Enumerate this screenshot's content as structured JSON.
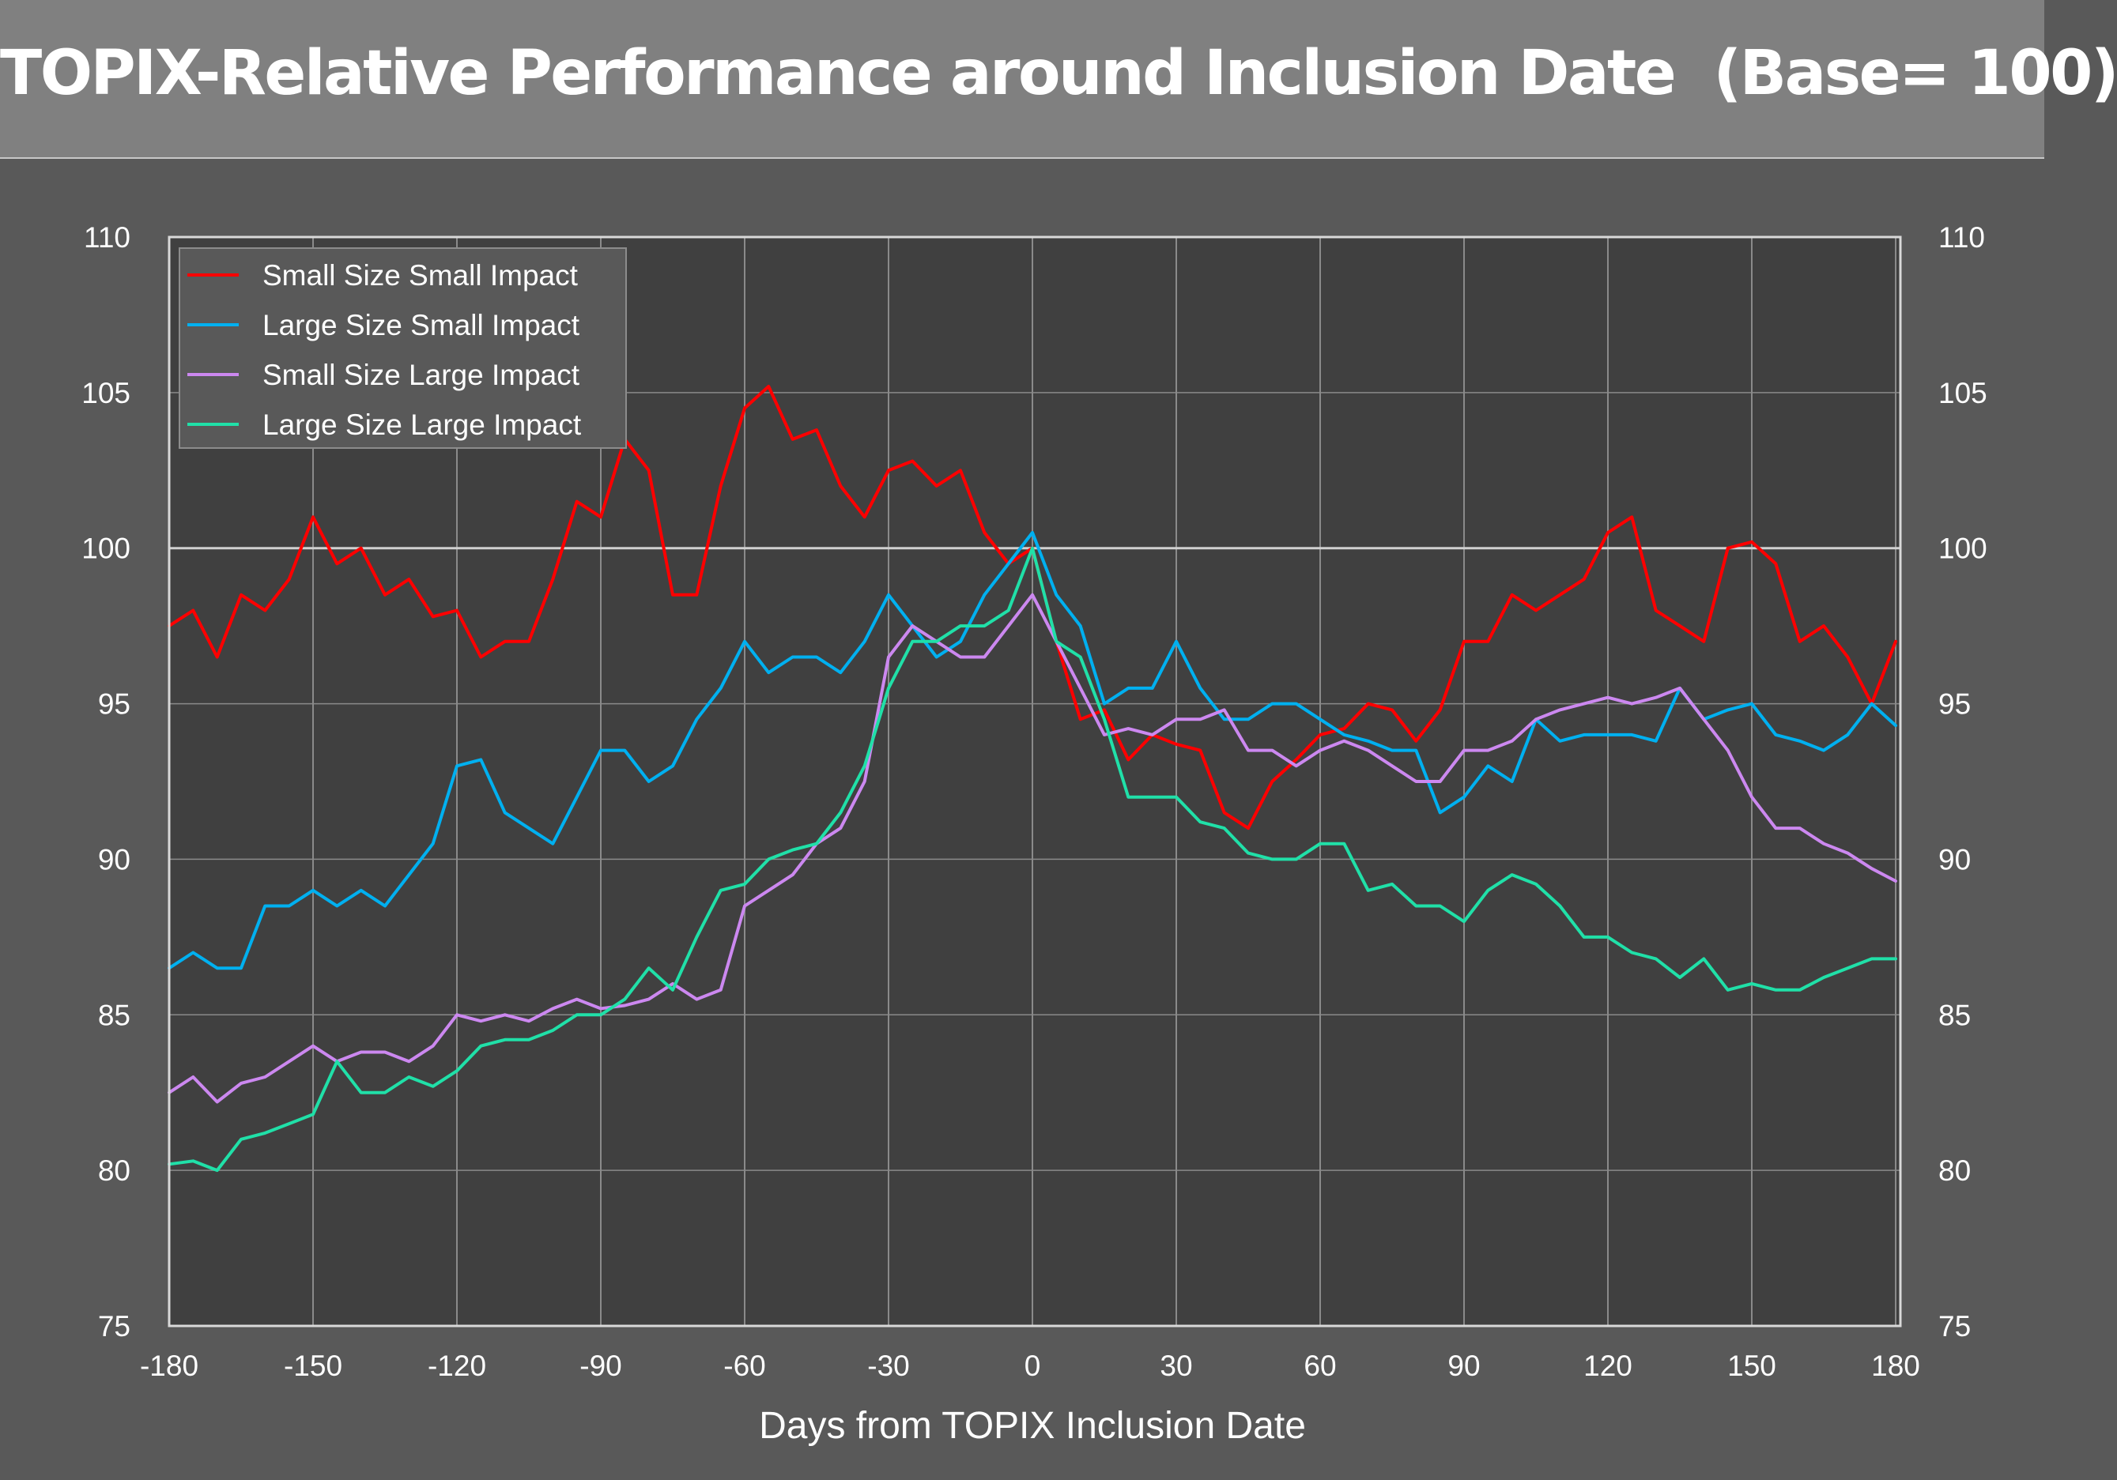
{
  "header": {
    "title": "TOPIX-Relative Performance around Inclusion Date  (Base= 100)"
  },
  "chart_data": {
    "type": "line",
    "title": "TOPIX-Relative Performance around Inclusion Date  (Base= 100)",
    "xlabel": "Days from TOPIX Inclusion Date",
    "ylabel": "",
    "xlim": [
      -180,
      180
    ],
    "ylim": [
      75,
      110
    ],
    "xticks": [
      -180,
      -150,
      -120,
      -90,
      -60,
      -30,
      0,
      30,
      60,
      90,
      120,
      150,
      180
    ],
    "xtick_labels": [
      "-180",
      "-150",
      "-120",
      "-90",
      "-60",
      "-30",
      "0",
      "30",
      "60",
      "90",
      "120",
      "150",
      "180"
    ],
    "yticks": [
      75,
      80,
      85,
      90,
      95,
      100,
      105,
      110
    ],
    "ytick_labels": [
      "75",
      "80",
      "85",
      "90",
      "95",
      "100",
      "105",
      "110"
    ],
    "secondary_y_axis": true,
    "grid": true,
    "reference_line": 100,
    "legend_position": "top-left",
    "x": [
      -180,
      -175,
      -170,
      -165,
      -160,
      -155,
      -150,
      -145,
      -140,
      -135,
      -130,
      -125,
      -120,
      -115,
      -110,
      -105,
      -100,
      -95,
      -90,
      -85,
      -80,
      -75,
      -70,
      -65,
      -60,
      -55,
      -50,
      -45,
      -40,
      -35,
      -30,
      -25,
      -20,
      -15,
      -10,
      -5,
      0,
      5,
      10,
      15,
      20,
      25,
      30,
      35,
      40,
      45,
      50,
      55,
      60,
      65,
      70,
      75,
      80,
      85,
      90,
      95,
      100,
      105,
      110,
      115,
      120,
      125,
      130,
      135,
      140,
      145,
      150,
      155,
      160,
      165,
      170,
      175,
      180
    ],
    "series": [
      {
        "name": "Small Size Small Impact",
        "color": "#ff0000",
        "values": [
          97.5,
          98.0,
          96.5,
          98.5,
          98.0,
          99.0,
          101.0,
          99.5,
          100.0,
          98.5,
          99.0,
          97.8,
          98.0,
          96.5,
          97.0,
          97.0,
          99.0,
          101.5,
          101.0,
          103.5,
          102.5,
          98.5,
          98.5,
          102.0,
          104.5,
          105.2,
          103.5,
          103.8,
          102.0,
          101.0,
          102.5,
          102.8,
          102.0,
          102.5,
          100.5,
          99.5,
          100.0,
          97.0,
          94.5,
          94.8,
          93.2,
          94.0,
          93.7,
          93.5,
          91.5,
          91.0,
          92.5,
          93.2,
          94.0,
          94.2,
          95.0,
          94.8,
          93.8,
          94.8,
          97.0,
          97.0,
          98.5,
          98.0,
          98.5,
          99.0,
          100.5,
          101.0,
          98.0,
          97.5,
          97.0,
          100.0,
          100.2,
          99.5,
          97.0,
          97.5,
          96.5,
          95.0,
          97.0
        ]
      },
      {
        "name": "Large Size Small Impact",
        "color": "#00b0f0",
        "values": [
          86.5,
          87.0,
          86.5,
          86.5,
          88.5,
          88.5,
          89.0,
          88.5,
          89.0,
          88.5,
          89.5,
          90.5,
          93.0,
          93.2,
          91.5,
          91.0,
          90.5,
          92.0,
          93.5,
          93.5,
          92.5,
          93.0,
          94.5,
          95.5,
          97.0,
          96.0,
          96.5,
          96.5,
          96.0,
          97.0,
          98.5,
          97.5,
          96.5,
          97.0,
          98.5,
          99.5,
          100.5,
          98.5,
          97.5,
          95.0,
          95.5,
          95.5,
          97.0,
          95.5,
          94.5,
          94.5,
          95.0,
          95.0,
          94.5,
          94.0,
          93.8,
          93.5,
          93.5,
          91.5,
          92.0,
          93.0,
          92.5,
          94.5,
          93.8,
          94.0,
          94.0,
          94.0,
          93.8,
          95.5,
          94.5,
          94.8,
          95.0,
          94.0,
          93.8,
          93.5,
          94.0,
          95.0,
          94.3
        ]
      },
      {
        "name": "Small Size Large Impact",
        "color": "#cc88f0",
        "values": [
          82.5,
          83.0,
          82.2,
          82.8,
          83.0,
          83.5,
          84.0,
          83.5,
          83.8,
          83.8,
          83.5,
          84.0,
          85.0,
          84.8,
          85.0,
          84.8,
          85.2,
          85.5,
          85.2,
          85.3,
          85.5,
          86.0,
          85.5,
          85.8,
          88.5,
          89.0,
          89.5,
          90.5,
          91.0,
          92.5,
          96.5,
          97.5,
          97.0,
          96.5,
          96.5,
          97.5,
          98.5,
          97.0,
          95.5,
          94.0,
          94.2,
          94.0,
          94.5,
          94.5,
          94.8,
          93.5,
          93.5,
          93.0,
          93.5,
          93.8,
          93.5,
          93.0,
          92.5,
          92.5,
          93.5,
          93.5,
          93.8,
          94.5,
          94.8,
          95.0,
          95.2,
          95.0,
          95.2,
          95.5,
          94.5,
          93.5,
          92.0,
          91.0,
          91.0,
          90.5,
          90.2,
          89.7,
          89.3
        ]
      },
      {
        "name": "Large Size Large Impact",
        "color": "#20e0a8",
        "values": [
          80.2,
          80.3,
          80.0,
          81.0,
          81.2,
          81.5,
          81.8,
          83.5,
          82.5,
          82.5,
          83.0,
          82.7,
          83.2,
          84.0,
          84.2,
          84.2,
          84.5,
          85.0,
          85.0,
          85.5,
          86.5,
          85.8,
          87.5,
          89.0,
          89.2,
          90.0,
          90.3,
          90.5,
          91.5,
          93.0,
          95.5,
          97.0,
          97.0,
          97.5,
          97.5,
          98.0,
          100.0,
          97.0,
          96.5,
          94.5,
          92.0,
          92.0,
          92.0,
          91.2,
          91.0,
          90.2,
          90.0,
          90.0,
          90.5,
          90.5,
          89.0,
          89.2,
          88.5,
          88.5,
          88.0,
          89.0,
          89.5,
          89.2,
          88.5,
          87.5,
          87.5,
          87.0,
          86.8,
          86.2,
          86.8,
          85.8,
          86.0,
          85.8,
          85.8,
          86.2,
          86.5,
          86.8,
          86.8
        ]
      }
    ]
  },
  "colors": {
    "page_background": "#595959",
    "title_background": "#808080",
    "plot_background": "#404040",
    "gridline": "#8a8a8a",
    "baseline": "#d0d0d0",
    "text": "#ffffff"
  }
}
